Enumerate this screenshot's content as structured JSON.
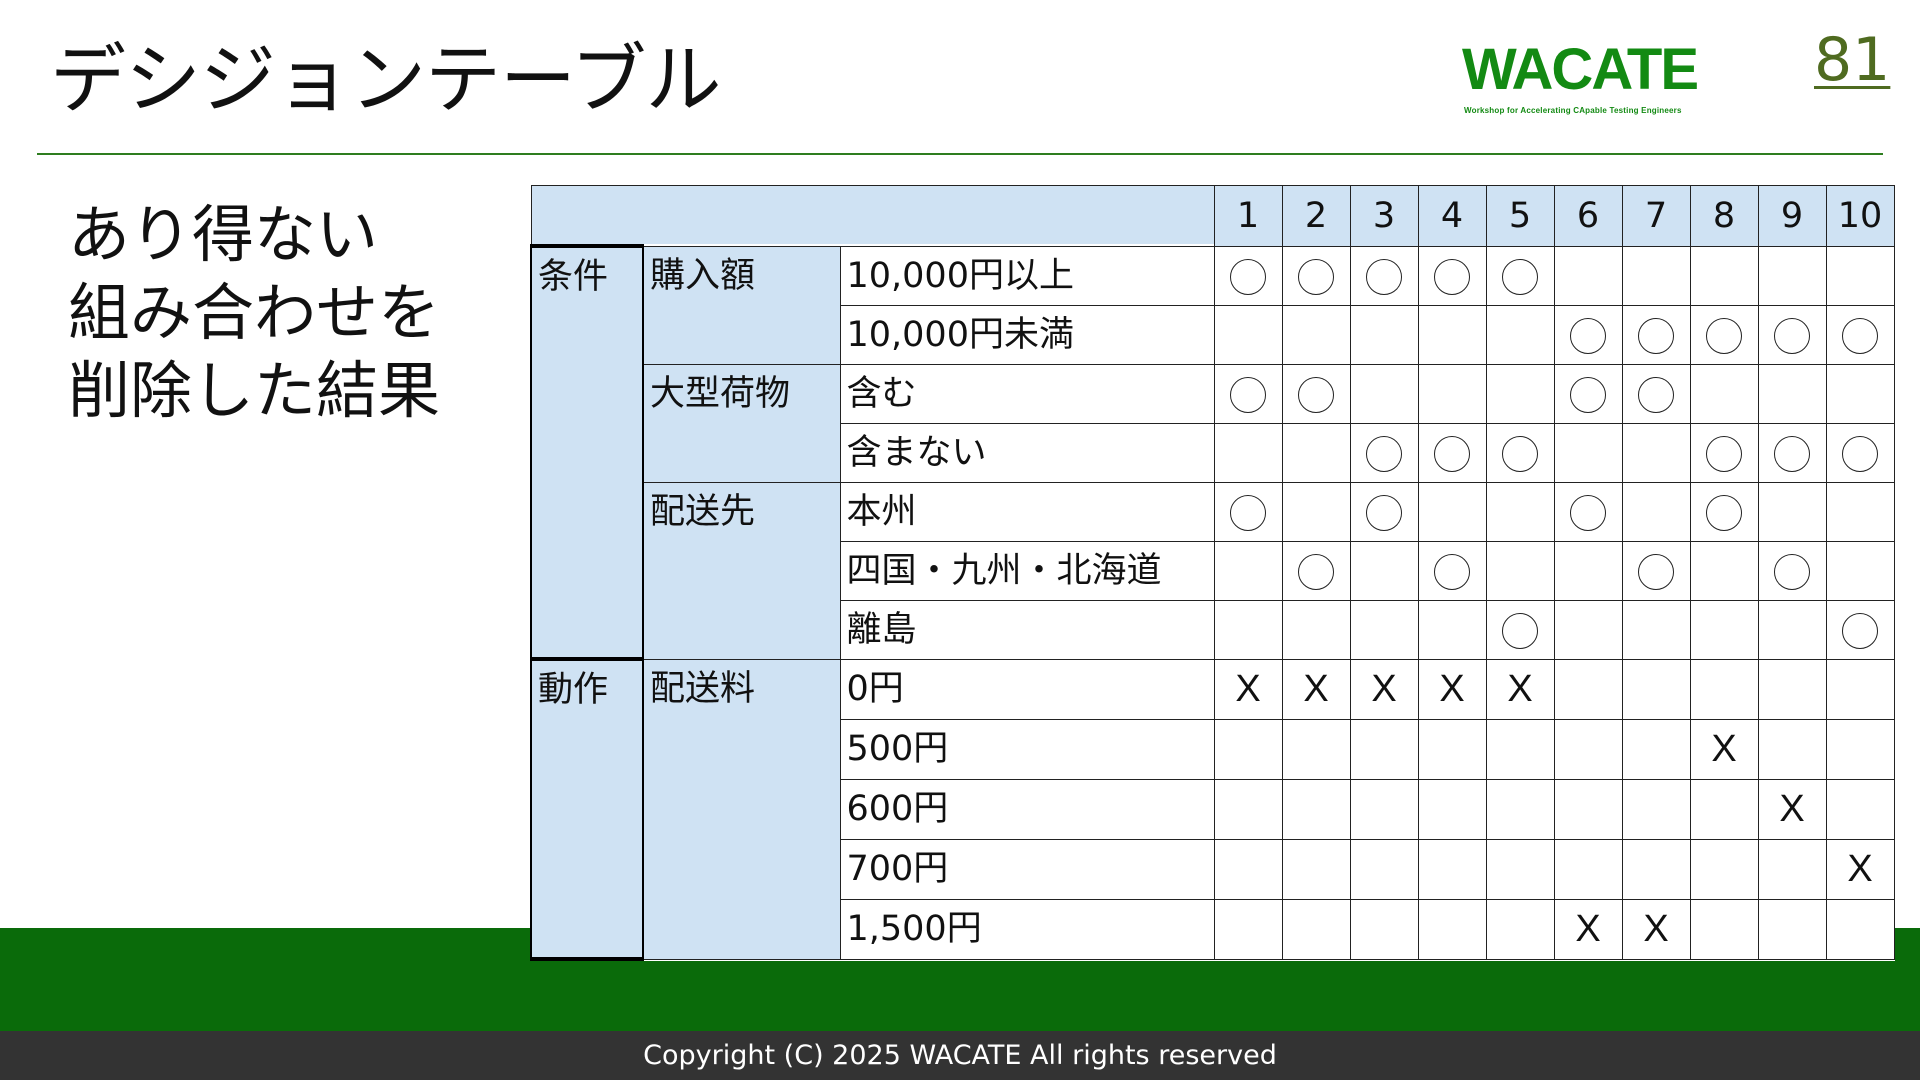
{
  "slide": {
    "title": "デシジョンテーブル",
    "page_number": "81",
    "logo_text": "WACATE",
    "logo_subtext": "Workshop for Accelerating CApable Testing Engineers",
    "side_text": [
      "あり得ない",
      "組み合わせを",
      "削除した結果"
    ],
    "copyright": "Copyright (C) 2025 WACATE All rights reserved"
  },
  "colors": {
    "accent_green": "#0a6b0a",
    "header_blue": "#cfe2f3",
    "logo_green": "#138a13",
    "footer_gray": "#333333"
  },
  "table": {
    "columns": [
      "1",
      "2",
      "3",
      "4",
      "5",
      "6",
      "7",
      "8",
      "9",
      "10"
    ],
    "groups": [
      {
        "label": "条件",
        "subgroups": [
          {
            "label": "購入額",
            "rows": [
              {
                "label": "10,000円以上",
                "marks": [
                  "○",
                  "○",
                  "○",
                  "○",
                  "○",
                  "",
                  "",
                  "",
                  "",
                  ""
                ]
              },
              {
                "label": "10,000円未満",
                "marks": [
                  "",
                  "",
                  "",
                  "",
                  "",
                  "○",
                  "○",
                  "○",
                  "○",
                  "○"
                ]
              }
            ]
          },
          {
            "label": "大型荷物",
            "rows": [
              {
                "label": "含む",
                "marks": [
                  "○",
                  "○",
                  "",
                  "",
                  "",
                  "○",
                  "○",
                  "",
                  "",
                  ""
                ]
              },
              {
                "label": "含まない",
                "marks": [
                  "",
                  "",
                  "○",
                  "○",
                  "○",
                  "",
                  "",
                  "○",
                  "○",
                  "○"
                ]
              }
            ]
          },
          {
            "label": "配送先",
            "rows": [
              {
                "label": "本州",
                "marks": [
                  "○",
                  "",
                  "○",
                  "",
                  "",
                  "○",
                  "",
                  "○",
                  "",
                  ""
                ]
              },
              {
                "label": "四国・九州・北海道",
                "marks": [
                  "",
                  "○",
                  "",
                  "○",
                  "",
                  "",
                  "○",
                  "",
                  "○",
                  ""
                ]
              },
              {
                "label": "離島",
                "marks": [
                  "",
                  "",
                  "",
                  "",
                  "○",
                  "",
                  "",
                  "",
                  "",
                  "○"
                ]
              }
            ]
          }
        ]
      },
      {
        "label": "動作",
        "subgroups": [
          {
            "label": "配送料",
            "rows": [
              {
                "label": "0円",
                "marks": [
                  "X",
                  "X",
                  "X",
                  "X",
                  "X",
                  "",
                  "",
                  "",
                  "",
                  ""
                ]
              },
              {
                "label": "500円",
                "marks": [
                  "",
                  "",
                  "",
                  "",
                  "",
                  "",
                  "",
                  "X",
                  "",
                  ""
                ]
              },
              {
                "label": "600円",
                "marks": [
                  "",
                  "",
                  "",
                  "",
                  "",
                  "",
                  "",
                  "",
                  "X",
                  ""
                ]
              },
              {
                "label": "700円",
                "marks": [
                  "",
                  "",
                  "",
                  "",
                  "",
                  "",
                  "",
                  "",
                  "",
                  "X"
                ]
              },
              {
                "label": "1,500円",
                "marks": [
                  "",
                  "",
                  "",
                  "",
                  "",
                  "X",
                  "X",
                  "",
                  "",
                  ""
                ]
              }
            ]
          }
        ]
      }
    ]
  }
}
